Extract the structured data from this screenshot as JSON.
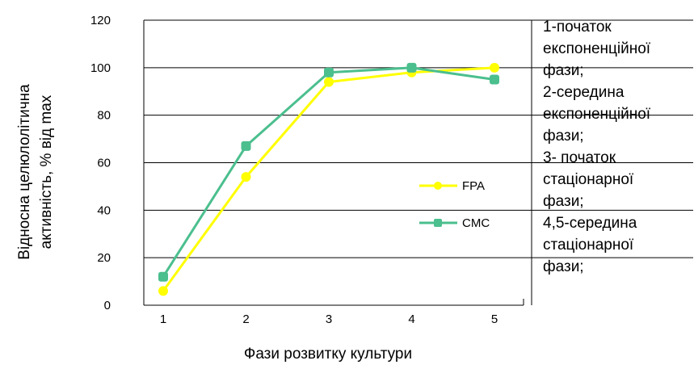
{
  "chart_data": {
    "type": "line",
    "categories": [
      "1",
      "2",
      "3",
      "4",
      "5"
    ],
    "series": [
      {
        "name": "FPA",
        "values": [
          6,
          54,
          94,
          98,
          100
        ],
        "color": "#ffff00"
      },
      {
        "name": "CMC",
        "values": [
          12,
          67,
          98,
          100,
          95
        ],
        "color": "#4bbf8e"
      }
    ],
    "xlabel": "Фази розвитку культури",
    "ylabel_line1": "Відносна целюлолітична",
    "ylabel_line2": "активність, % від max",
    "ylim": [
      0,
      120
    ],
    "yticks": [
      0,
      20,
      40,
      60,
      80,
      100,
      120
    ],
    "grid": true,
    "legend_position": "center-right"
  },
  "notes": [
    "1-початок",
    "експоненційної",
    "фази;",
    "2-середина",
    "експоненційної",
    "фази;",
    "3- початок",
    "стаціонарної",
    "фази;",
    "4,5-середина",
    "стаціонарної",
    "фази;"
  ]
}
